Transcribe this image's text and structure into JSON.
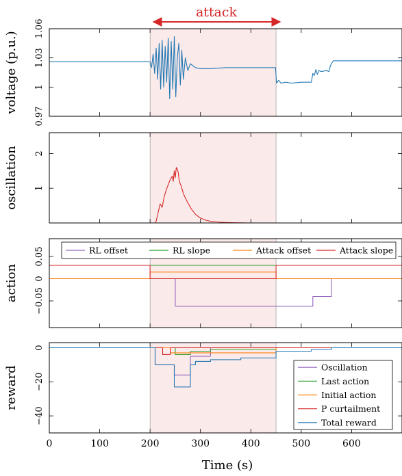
{
  "chart_data": [
    {
      "type": "line",
      "ylabel": "voltage (p.u.)",
      "xlim": [
        0,
        700
      ],
      "ylim": [
        0.97,
        1.06
      ],
      "yticks": [
        "0.97",
        "1",
        "1.03",
        "1.06"
      ],
      "ytick_values": [
        0.97,
        1.0,
        1.03,
        1.06
      ],
      "attack_window": [
        200,
        450
      ],
      "annotation": "attack",
      "series": [
        {
          "color": "#1f77b4",
          "x": [
            0,
            100,
            199,
            200,
            203,
            206,
            209,
            212,
            215,
            218,
            221,
            224,
            227,
            230,
            233,
            236,
            239,
            242,
            245,
            248,
            251,
            254,
            257,
            260,
            263,
            266,
            270,
            275,
            280,
            290,
            300,
            320,
            350,
            400,
            449,
            451,
            455,
            460,
            470,
            480,
            500,
            520,
            523,
            526,
            529,
            532,
            535,
            540,
            550,
            555,
            558,
            561,
            564,
            570,
            580,
            600,
            650,
            700
          ],
          "values": [
            1.026,
            1.026,
            1.026,
            1.026,
            1.02,
            1.034,
            1.014,
            1.04,
            1.008,
            1.045,
            0.998,
            1.048,
            1.0,
            1.042,
            1.005,
            1.05,
            0.988,
            1.047,
            0.998,
            1.052,
            0.99,
            1.03,
            1.045,
            1.002,
            1.038,
            1.008,
            1.03,
            1.017,
            1.024,
            1.02,
            1.019,
            1.019,
            1.02,
            1.02,
            1.02,
            1.004,
            1.007,
            1.004,
            1.005,
            1.004,
            1.005,
            1.005,
            1.014,
            1.012,
            1.018,
            1.013,
            1.017,
            1.016,
            1.017,
            1.016,
            1.022,
            1.025,
            1.027,
            1.027,
            1.027,
            1.027,
            1.027,
            1.027
          ]
        }
      ]
    },
    {
      "type": "line",
      "ylabel": "oscillation",
      "xlim": [
        0,
        700
      ],
      "ylim": [
        0,
        2.6
      ],
      "yticks": [
        "1",
        "2"
      ],
      "ytick_values": [
        1,
        2
      ],
      "attack_window": [
        200,
        450
      ],
      "series": [
        {
          "color": "#d62728",
          "x": [
            0,
            100,
            200,
            210,
            212,
            216,
            220,
            224,
            228,
            232,
            236,
            240,
            244,
            246,
            248,
            250,
            252,
            254,
            256,
            258,
            262,
            266,
            270,
            276,
            282,
            290,
            300,
            310,
            320,
            340,
            360,
            400,
            450,
            500,
            600,
            700
          ],
          "values": [
            0,
            0,
            0,
            0,
            0.05,
            0.3,
            0.55,
            0.45,
            0.75,
            0.95,
            1.1,
            1.25,
            1.35,
            1.2,
            1.5,
            1.3,
            1.6,
            1.55,
            1.45,
            1.2,
            1.05,
            0.85,
            0.72,
            0.55,
            0.4,
            0.25,
            0.14,
            0.08,
            0.05,
            0.02,
            0.01,
            0,
            0,
            0,
            0,
            0
          ]
        }
      ]
    },
    {
      "type": "line",
      "ylabel": "action",
      "xlim": [
        0,
        700
      ],
      "ylim": [
        -0.11,
        0.09
      ],
      "yticks": [
        "−0.05",
        "0",
        "0.05"
      ],
      "ytick_values": [
        -0.05,
        0,
        0.05
      ],
      "attack_window": [
        200,
        450
      ],
      "legend": {
        "placement": "top",
        "entries": [
          "RL offset",
          "RL slope",
          "Attack offset",
          "Attack slope"
        ]
      },
      "series": [
        {
          "name": "RL offset",
          "color": "#9467bd",
          "x": [
            0,
            250,
            250,
            523,
            523,
            560,
            560,
            700
          ],
          "values": [
            0,
            0,
            -0.062,
            -0.062,
            -0.04,
            -0.04,
            0,
            0
          ]
        },
        {
          "name": "RL slope",
          "color": "#2ca02c",
          "x": [
            0,
            200,
            200,
            450,
            450,
            700
          ],
          "values": [
            0.03,
            0.03,
            0.03,
            0.03,
            0.03,
            0.03
          ]
        },
        {
          "name": "Attack offset",
          "color": "#ff7f0e",
          "x": [
            0,
            200,
            200,
            450,
            450,
            700
          ],
          "values": [
            0,
            0,
            0.015,
            0.015,
            0,
            0
          ]
        },
        {
          "name": "Attack slope",
          "color": "#d62728",
          "x": [
            0,
            200,
            200,
            450,
            450,
            700
          ],
          "values": [
            0.03,
            0.03,
            0,
            0,
            0.03,
            0.03
          ]
        }
      ]
    },
    {
      "type": "line",
      "ylabel": "reward",
      "xlabel": "Time (s)",
      "xlim": [
        0,
        700
      ],
      "ylim": [
        -50,
        3
      ],
      "yticks": [
        "−40",
        "−20",
        "0"
      ],
      "ytick_values": [
        -40,
        -20,
        0
      ],
      "xticks": [
        "0",
        "100",
        "200",
        "300",
        "400",
        "500",
        "600"
      ],
      "xtick_values": [
        0,
        100,
        200,
        300,
        400,
        500,
        600
      ],
      "attack_window": [
        200,
        450
      ],
      "legend": {
        "placement": "right",
        "entries": [
          "Oscillation",
          "Last action",
          "Initial action",
          "P curtailment",
          "Total reward"
        ]
      },
      "series": [
        {
          "name": "Oscillation",
          "color": "#9467bd",
          "x": [
            0,
            210,
            210,
            248,
            248,
            280,
            280,
            320,
            320,
            700
          ],
          "values": [
            0,
            0,
            -10,
            -10,
            -16,
            -16,
            -5,
            -5,
            0,
            0
          ]
        },
        {
          "name": "Last action",
          "color": "#2ca02c",
          "x": [
            0,
            250,
            250,
            280,
            280,
            320,
            320,
            450,
            450,
            700
          ],
          "values": [
            0,
            0,
            -4,
            -4,
            -2,
            -2,
            -1,
            -1,
            0,
            0
          ]
        },
        {
          "name": "Initial action",
          "color": "#ff7f0e",
          "x": [
            0,
            240,
            240,
            450,
            450,
            700
          ],
          "values": [
            0,
            0,
            -3,
            -3,
            0,
            0
          ]
        },
        {
          "name": "P curtailment",
          "color": "#d62728",
          "x": [
            0,
            225,
            225,
            240,
            240,
            700
          ],
          "values": [
            0,
            0,
            -4,
            -4,
            0,
            0
          ]
        },
        {
          "name": "Total reward",
          "color": "#1f77b4",
          "x": [
            0,
            210,
            210,
            248,
            248,
            280,
            280,
            290,
            290,
            320,
            320,
            380,
            380,
            450,
            450,
            520,
            520,
            560,
            560,
            700
          ],
          "values": [
            0,
            0,
            -10,
            -10,
            -23,
            -23,
            -10,
            -10,
            -8,
            -8,
            -7,
            -7,
            -6,
            -6,
            -2,
            -2,
            -1,
            -1,
            0,
            0
          ]
        }
      ]
    }
  ]
}
